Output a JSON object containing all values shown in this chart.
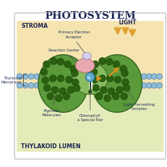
{
  "title": "PHOTOSYSTEM",
  "title_color": "#1a2352",
  "title_fontsize": 10.5,
  "stroma_label": "STROMA",
  "lumen_label": "THYLAKOID LUMEN",
  "section_fontsize": 5.8,
  "bg_color": "#ffffff",
  "stroma_color": "#f5e4b0",
  "lumen_color": "#e5ebb8",
  "bead_fill": "#90bcd8",
  "bead_edge": "#4a80a8",
  "protein_fill": "#5a9a3a",
  "protein_edge": "#2a5a1a",
  "dot_fill": "#2a6010",
  "dot_edge": "#1a4008",
  "inner_light_fill": "#88bb60",
  "inner_light_edge": "#3a6a1a",
  "reaction_fill": "#e8a8b0",
  "reaction_edge": "#b06070",
  "electron_acc_fill": "#d8d0f0",
  "electron_acc_edge": "#8878b0",
  "chl_fill": "#60aacc",
  "chl_edge": "#2070a0",
  "stem_color": "#334a22",
  "arrow_orange": "#d89020",
  "arrow_orange2": "#e0a030",
  "annotation_color": "#1a2a5a",
  "annot_fs": 4.0,
  "light_fs": 5.5,
  "light_label": "LIGHT"
}
